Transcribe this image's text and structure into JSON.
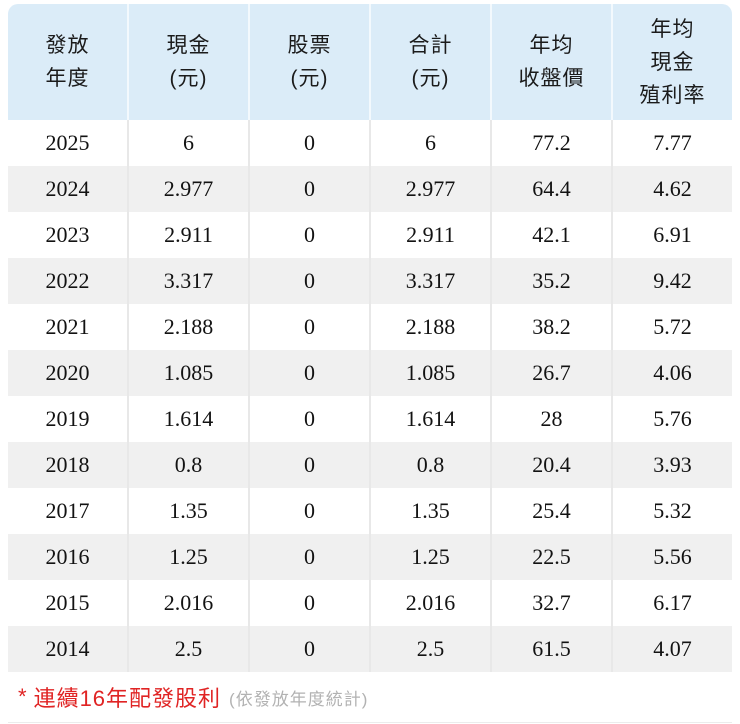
{
  "table": {
    "headers": [
      {
        "name": "issue-year",
        "lines": [
          "發放",
          "年度"
        ]
      },
      {
        "name": "cash",
        "lines": [
          "現金",
          "(元)"
        ]
      },
      {
        "name": "stock",
        "lines": [
          "股票",
          "(元)"
        ]
      },
      {
        "name": "total",
        "lines": [
          "合計",
          "(元)"
        ]
      },
      {
        "name": "avg-close-price",
        "lines": [
          "年均",
          "收盤價"
        ]
      },
      {
        "name": "avg-cash-yield",
        "lines": [
          "年均",
          "現金",
          "殖利率"
        ]
      }
    ],
    "rows": [
      [
        "2025",
        "6",
        "0",
        "6",
        "77.2",
        "7.77"
      ],
      [
        "2024",
        "2.977",
        "0",
        "2.977",
        "64.4",
        "4.62"
      ],
      [
        "2023",
        "2.911",
        "0",
        "2.911",
        "42.1",
        "6.91"
      ],
      [
        "2022",
        "3.317",
        "0",
        "3.317",
        "35.2",
        "9.42"
      ],
      [
        "2021",
        "2.188",
        "0",
        "2.188",
        "38.2",
        "5.72"
      ],
      [
        "2020",
        "1.085",
        "0",
        "1.085",
        "26.7",
        "4.06"
      ],
      [
        "2019",
        "1.614",
        "0",
        "1.614",
        "28",
        "5.76"
      ],
      [
        "2018",
        "0.8",
        "0",
        "0.8",
        "20.4",
        "3.93"
      ],
      [
        "2017",
        "1.35",
        "0",
        "1.35",
        "25.4",
        "5.32"
      ],
      [
        "2016",
        "1.25",
        "0",
        "1.25",
        "22.5",
        "5.56"
      ],
      [
        "2015",
        "2.016",
        "0",
        "2.016",
        "32.7",
        "6.17"
      ],
      [
        "2014",
        "2.5",
        "0",
        "2.5",
        "61.5",
        "4.07"
      ]
    ]
  },
  "footnote": {
    "marker": "*",
    "text": "連續16年配發股利",
    "suffix": "(依發放年度統計)"
  },
  "colors": {
    "header_bg": "#dbecf8",
    "row_alt_bg": "#f0f0f0",
    "body_separator": "#e8e8e8",
    "note_red": "#e02424",
    "note_grey": "#b2b2b2",
    "text": "#121212"
  }
}
